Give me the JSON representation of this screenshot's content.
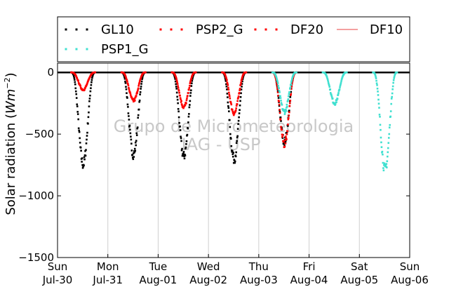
{
  "chart_data": {
    "type": "scatter",
    "ylabel_prefix": "Solar radiation (",
    "ylabel_units": "Wm",
    "ylabel_exp": "−2",
    "ylabel_suffix": ")",
    "ylim": [
      -1500,
      75
    ],
    "yticks": [
      0,
      -500,
      -1000,
      -1500
    ],
    "ytick_labels": [
      "0",
      "−500",
      "−1000",
      "−1500"
    ],
    "xlim": [
      0,
      7
    ],
    "xticks": [
      0,
      1,
      2,
      3,
      4,
      5,
      6,
      7
    ],
    "xtick_labels_day": [
      "Sun",
      "Mon",
      "Tue",
      "Wed",
      "Thu",
      "Fri",
      "Sat",
      "Sun"
    ],
    "xtick_labels_date": [
      "Jul-30",
      "Jul-31",
      "Aug-01",
      "Aug-02",
      "Aug-03",
      "Aug-04",
      "Aug-05",
      "Aug-06"
    ],
    "vgrid": true,
    "legend_placement": "top",
    "watermark": [
      "Grupo de Micrometeorologia",
      "IAG - USP"
    ],
    "series": [
      {
        "name": "GL10",
        "color": "#000000",
        "style": "dots",
        "days": [
          {
            "day": 0,
            "peak": -745
          },
          {
            "day": 1,
            "peak": -665
          },
          {
            "day": 2,
            "peak": -680
          },
          {
            "day": 3,
            "peak": -700
          },
          {
            "day": 4,
            "peak": -560
          }
        ]
      },
      {
        "name": "PSP2_G",
        "color": "#ff0000",
        "style": "dots",
        "days": []
      },
      {
        "name": "DF20",
        "color": "#ff0000",
        "style": "dots",
        "days": [
          {
            "day": 0,
            "peak": -140
          },
          {
            "day": 1,
            "peak": -230
          },
          {
            "day": 2,
            "peak": -280
          },
          {
            "day": 3,
            "peak": -330
          },
          {
            "day": 4,
            "peak": -580
          }
        ]
      },
      {
        "name": "DF10",
        "color": "#f08080",
        "style": "line",
        "days": []
      },
      {
        "name": "PSP1_G",
        "color": "#40e0d0",
        "style": "dots",
        "days": [
          {
            "day": 4,
            "peak": -320
          },
          {
            "day": 5,
            "peak": -250
          },
          {
            "day": 6,
            "peak": -790
          }
        ]
      }
    ]
  }
}
